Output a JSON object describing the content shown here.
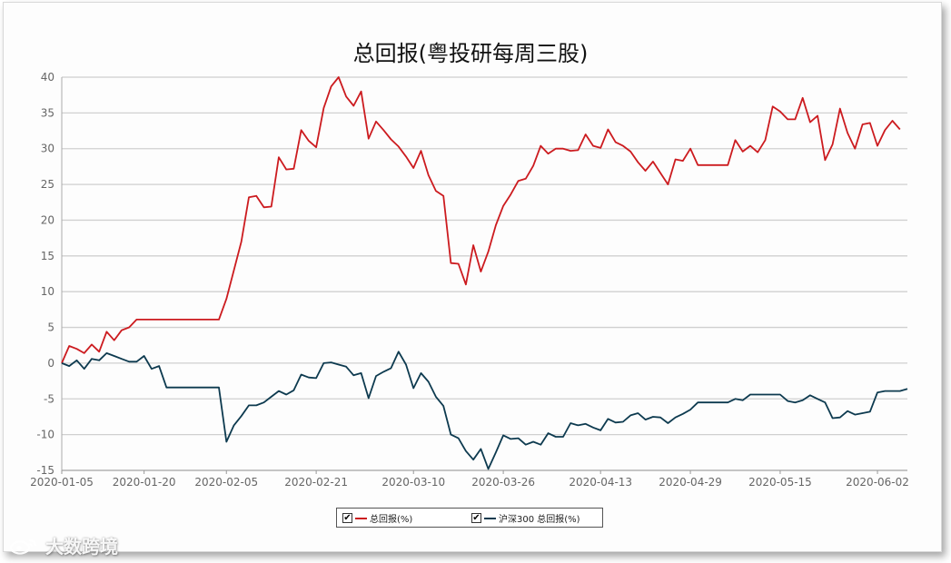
{
  "colors": {
    "series1": "#cc1b1f",
    "series2": "#0d3a4f",
    "grid": "#d0d0d0"
  },
  "watermark": {
    "text": "大数跨境",
    "icon": "weibo-logo-icon"
  },
  "chart_data": {
    "type": "line",
    "title": "总回报(粤投研每周三股)",
    "xlabel": "",
    "ylabel": "",
    "ylim": [
      -15,
      40
    ],
    "yticks": [
      -15,
      -10,
      -5,
      0,
      5,
      10,
      15,
      20,
      25,
      30,
      35,
      40
    ],
    "grid": true,
    "legend_position": "bottom-center",
    "xticks": [
      "2020-01-05",
      "2020-01-20",
      "2020-02-05",
      "2020-02-21",
      "2020-03-10",
      "2020-03-26",
      "2020-04-13",
      "2020-04-29",
      "2020-05-15",
      "2020-06-02"
    ],
    "series": [
      {
        "name": "总回报(%)",
        "color": "#cc1b1f",
        "points": [
          [
            0,
            0
          ],
          [
            1,
            2.4
          ],
          [
            2,
            2
          ],
          [
            3,
            1.4
          ],
          [
            4,
            2.6
          ],
          [
            5,
            1.6
          ],
          [
            6,
            4.4
          ],
          [
            7,
            3.2
          ],
          [
            8,
            4.6
          ],
          [
            9,
            5
          ],
          [
            10,
            6.1
          ],
          [
            11,
            6.1
          ],
          [
            12,
            6.1
          ],
          [
            13,
            6.1
          ],
          [
            14,
            6.1
          ],
          [
            15,
            6.1
          ],
          [
            16,
            6.1
          ],
          [
            17,
            6.1
          ],
          [
            18,
            6.1
          ],
          [
            19,
            6.1
          ],
          [
            20,
            6.1
          ],
          [
            21,
            6.1
          ],
          [
            22,
            9
          ],
          [
            23,
            13
          ],
          [
            24,
            17
          ],
          [
            25,
            23.2
          ],
          [
            26,
            23.4
          ],
          [
            27,
            21.8
          ],
          [
            28,
            21.9
          ],
          [
            29,
            28.8
          ],
          [
            30,
            27.1
          ],
          [
            31,
            27.2
          ],
          [
            32,
            32.6
          ],
          [
            33,
            31.1
          ],
          [
            34,
            30.2
          ],
          [
            35,
            35.7
          ],
          [
            36,
            38.7
          ],
          [
            37,
            40
          ],
          [
            38,
            37.3
          ],
          [
            39,
            36
          ],
          [
            40,
            38
          ],
          [
            41,
            31.4
          ],
          [
            42,
            33.8
          ],
          [
            43,
            32.6
          ],
          [
            44,
            31.3
          ],
          [
            45,
            30.3
          ],
          [
            46,
            28.9
          ],
          [
            47,
            27.3
          ],
          [
            48,
            29.7
          ],
          [
            49,
            26.3
          ],
          [
            50,
            24.1
          ],
          [
            51,
            23.4
          ],
          [
            52,
            14
          ],
          [
            53,
            13.9
          ],
          [
            54,
            11
          ],
          [
            55,
            16.5
          ],
          [
            56,
            12.8
          ],
          [
            57,
            15.6
          ],
          [
            58,
            19.3
          ],
          [
            59,
            22
          ],
          [
            60,
            23.6
          ],
          [
            61,
            25.5
          ],
          [
            62,
            25.8
          ],
          [
            63,
            27.6
          ],
          [
            64,
            30.4
          ],
          [
            65,
            29.3
          ],
          [
            66,
            30
          ],
          [
            67,
            30
          ],
          [
            68,
            29.7
          ],
          [
            69,
            29.8
          ],
          [
            70,
            32
          ],
          [
            71,
            30.4
          ],
          [
            72,
            30.1
          ],
          [
            73,
            32.7
          ],
          [
            74,
            30.9
          ],
          [
            75,
            30.4
          ],
          [
            76,
            29.6
          ],
          [
            77,
            28.1
          ],
          [
            78,
            26.9
          ],
          [
            79,
            28.2
          ],
          [
            80,
            26.6
          ],
          [
            81,
            25
          ],
          [
            82,
            28.5
          ],
          [
            83,
            28.3
          ],
          [
            84,
            30
          ],
          [
            85,
            27.7
          ],
          [
            86,
            27.7
          ],
          [
            87,
            27.7
          ],
          [
            88,
            27.7
          ],
          [
            89,
            27.7
          ],
          [
            90,
            31.2
          ],
          [
            91,
            29.6
          ],
          [
            92,
            30.4
          ],
          [
            93,
            29.5
          ],
          [
            94,
            31.2
          ],
          [
            95,
            35.9
          ],
          [
            96,
            35.2
          ],
          [
            97,
            34.1
          ],
          [
            98,
            34.1
          ],
          [
            99,
            37.1
          ],
          [
            100,
            33.7
          ],
          [
            101,
            34.6
          ],
          [
            102,
            28.4
          ],
          [
            103,
            30.6
          ],
          [
            104,
            35.6
          ],
          [
            105,
            32.2
          ],
          [
            106,
            30
          ],
          [
            107,
            33.4
          ],
          [
            108,
            33.6
          ],
          [
            109,
            30.4
          ],
          [
            110,
            32.6
          ],
          [
            111,
            33.9
          ],
          [
            112,
            32.7
          ]
        ]
      },
      {
        "name": "沪深300 总回报(%)",
        "color": "#0d3a4f",
        "points": [
          [
            0,
            0
          ],
          [
            1,
            -0.4
          ],
          [
            2,
            0.4
          ],
          [
            3,
            -0.8
          ],
          [
            4,
            0.6
          ],
          [
            5,
            0.4
          ],
          [
            6,
            1.4
          ],
          [
            7,
            1
          ],
          [
            8,
            0.6
          ],
          [
            9,
            0.2
          ],
          [
            10,
            0.2
          ],
          [
            11,
            1
          ],
          [
            12,
            -0.8
          ],
          [
            13,
            -0.4
          ],
          [
            14,
            -3.4
          ],
          [
            15,
            -3.4
          ],
          [
            16,
            -3.4
          ],
          [
            17,
            -3.4
          ],
          [
            18,
            -3.4
          ],
          [
            19,
            -3.4
          ],
          [
            20,
            -3.4
          ],
          [
            21,
            -3.4
          ],
          [
            22,
            -11
          ],
          [
            23,
            -8.7
          ],
          [
            24,
            -7.4
          ],
          [
            25,
            -5.9
          ],
          [
            26,
            -5.9
          ],
          [
            27,
            -5.5
          ],
          [
            28,
            -4.7
          ],
          [
            29,
            -3.9
          ],
          [
            30,
            -4.4
          ],
          [
            31,
            -3.8
          ],
          [
            32,
            -1.6
          ],
          [
            33,
            -2
          ],
          [
            34,
            -2.1
          ],
          [
            35,
            0
          ],
          [
            36,
            0.1
          ],
          [
            37,
            -0.2
          ],
          [
            38,
            -0.5
          ],
          [
            39,
            -1.7
          ],
          [
            40,
            -1.4
          ],
          [
            41,
            -4.9
          ],
          [
            42,
            -1.8
          ],
          [
            43,
            -1.2
          ],
          [
            44,
            -0.7
          ],
          [
            45,
            1.6
          ],
          [
            46,
            -0.2
          ],
          [
            47,
            -3.5
          ],
          [
            48,
            -1.4
          ],
          [
            49,
            -2.6
          ],
          [
            50,
            -4.7
          ],
          [
            51,
            -6
          ],
          [
            52,
            -10
          ],
          [
            53,
            -10.5
          ],
          [
            54,
            -12.3
          ],
          [
            55,
            -13.5
          ],
          [
            56,
            -12
          ],
          [
            57,
            -14.8
          ],
          [
            58,
            -12.5
          ],
          [
            59,
            -10.1
          ],
          [
            60,
            -10.6
          ],
          [
            61,
            -10.5
          ],
          [
            62,
            -11.4
          ],
          [
            63,
            -11
          ],
          [
            64,
            -11.4
          ],
          [
            65,
            -9.8
          ],
          [
            66,
            -10.3
          ],
          [
            67,
            -10.3
          ],
          [
            68,
            -8.4
          ],
          [
            69,
            -8.7
          ],
          [
            70,
            -8.5
          ],
          [
            71,
            -9
          ],
          [
            72,
            -9.4
          ],
          [
            73,
            -7.8
          ],
          [
            74,
            -8.3
          ],
          [
            75,
            -8.2
          ],
          [
            76,
            -7.3
          ],
          [
            77,
            -7
          ],
          [
            78,
            -7.9
          ],
          [
            79,
            -7.5
          ],
          [
            80,
            -7.6
          ],
          [
            81,
            -8.4
          ],
          [
            82,
            -7.6
          ],
          [
            83,
            -7.1
          ],
          [
            84,
            -6.5
          ],
          [
            85,
            -5.5
          ],
          [
            86,
            -5.5
          ],
          [
            87,
            -5.5
          ],
          [
            88,
            -5.5
          ],
          [
            89,
            -5.5
          ],
          [
            90,
            -5
          ],
          [
            91,
            -5.2
          ],
          [
            92,
            -4.4
          ],
          [
            93,
            -4.4
          ],
          [
            94,
            -4.4
          ],
          [
            95,
            -4.4
          ],
          [
            96,
            -4.4
          ],
          [
            97,
            -5.3
          ],
          [
            98,
            -5.5
          ],
          [
            99,
            -5.2
          ],
          [
            100,
            -4.5
          ],
          [
            101,
            -5
          ],
          [
            102,
            -5.5
          ],
          [
            103,
            -7.7
          ],
          [
            104,
            -7.6
          ],
          [
            105,
            -6.7
          ],
          [
            106,
            -7.2
          ],
          [
            107,
            -7
          ],
          [
            108,
            -6.8
          ],
          [
            109,
            -4.1
          ],
          [
            110,
            -3.9
          ],
          [
            111,
            -3.9
          ],
          [
            112,
            -3.9
          ],
          [
            113,
            -3.6
          ]
        ]
      }
    ],
    "xtick_index": [
      0,
      11,
      22,
      34,
      47,
      59,
      72,
      84,
      96,
      109
    ],
    "x_max_index": 113
  },
  "legend": {
    "items": [
      {
        "label": "总回报(%)",
        "checked": "✔"
      },
      {
        "label": "沪深300 总回报(%)",
        "checked": "✔"
      }
    ]
  }
}
